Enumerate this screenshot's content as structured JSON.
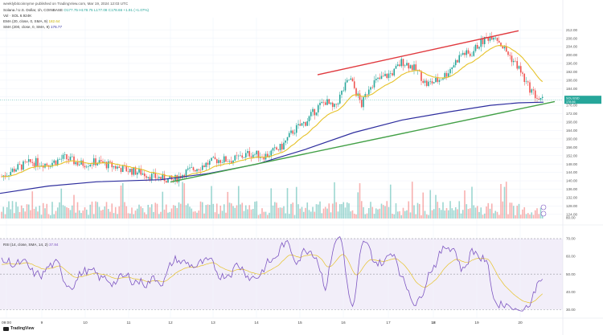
{
  "header": {
    "publisher": "weeklybitcoinnyme published on TradingView.com, Mar 19, 2024 12:03 UTC",
    "symbol": "Solana / U.S. Dollar, 1h, COINBASE",
    "ohlc": "O177.75  H178.75  L177.08  C178.66  +1.91 (+1.07%)",
    "vol": "Vol · SOL  6.924K",
    "ema": "EMA (20, close, 0, SMA, 9)",
    "ema_value": "182.64",
    "sma": "SMA (200, close, 0, SMA, 9)",
    "sma_value": "176.77",
    "rsi": "RSI (14, close, SMA, 14, 2)",
    "rsi_value": "37.84"
  },
  "price_axis": {
    "ticks": [
      "212.00",
      "208.00",
      "204.00",
      "200.00",
      "196.00",
      "192.00",
      "188.00",
      "184.00",
      "180.00",
      "176.00",
      "172.00",
      "168.00",
      "164.00",
      "160.00",
      "156.00",
      "152.00",
      "148.00",
      "144.00",
      "140.00",
      "136.00",
      "132.00",
      "128.00",
      "124.00",
      "80.00"
    ],
    "last_label": "SOL/USD",
    "last_price": "178.66"
  },
  "rsi_axis": {
    "ticks": [
      "70.00",
      "60.00",
      "50.00",
      "40.00",
      "30.00"
    ]
  },
  "time_axis": {
    "labels": [
      "09:00",
      "9",
      "10",
      "11",
      "12",
      "13",
      "14",
      "15",
      "16",
      "17",
      "18",
      "19",
      "20"
    ]
  },
  "branding": {
    "logo": "TradingView"
  },
  "chart_data": [
    {
      "type": "candlestick",
      "title": "Solana / U.S. Dollar, 1h, COINBASE",
      "ylim": [
        122,
        214
      ],
      "x": [
        "09:00",
        "9",
        "10",
        "11",
        "12",
        "13",
        "14",
        "15",
        "16",
        "17",
        "18",
        "19",
        "20"
      ],
      "overlays": [
        {
          "name": "EMA (20, close, 0, SMA, 9)",
          "color": "#e6c229"
        },
        {
          "name": "SMA (200, close, 0, SMA, 9)",
          "color": "#2e2e9e"
        }
      ],
      "trendlines": [
        {
          "color": "#e0393e",
          "from": [
            "14.6",
            190.6
          ],
          "to": [
            "18.5",
            211.6
          ]
        },
        {
          "color": "#43a047",
          "from": [
            "11",
            139.4
          ],
          "to": [
            "19.5",
            177.8
          ]
        }
      ],
      "colors": {
        "up": "#26a69a",
        "down": "#ef5350"
      }
    },
    {
      "type": "line",
      "title": "RSI (14, close, SMA, 14, 2)",
      "ylim": [
        27,
        75
      ],
      "levels": [
        70,
        50,
        30
      ],
      "series": [
        {
          "name": "RSI",
          "color": "#7e57c2"
        },
        {
          "name": "SMA",
          "color": "#e6c229"
        }
      ]
    }
  ]
}
